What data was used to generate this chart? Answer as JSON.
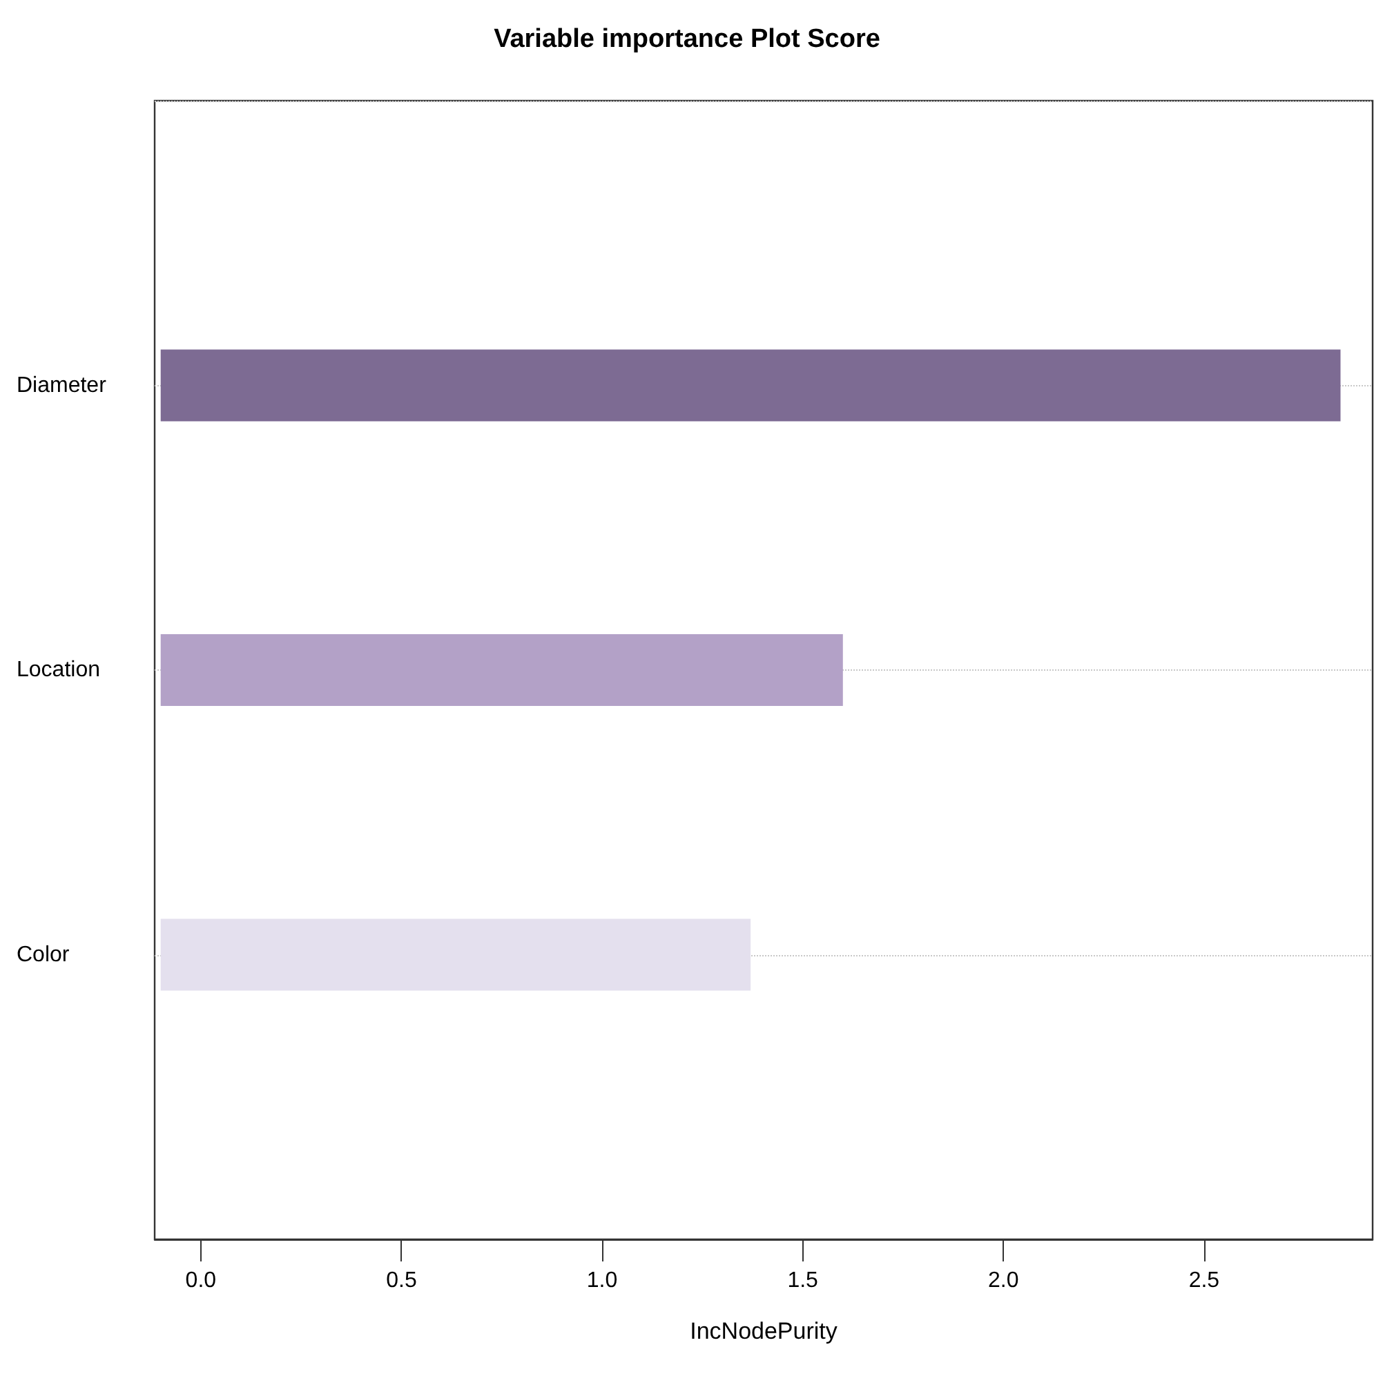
{
  "chart_data": {
    "type": "bar",
    "orientation": "horizontal",
    "title": "Variable importance Plot Score",
    "xlabel": "IncNodePurity",
    "categories": [
      "Diameter",
      "Location",
      "Color"
    ],
    "base": [
      -0.1,
      -0.1,
      -0.1
    ],
    "values": [
      2.94,
      1.7,
      1.47
    ],
    "colors": [
      "#7d6b93",
      "#b3a1c7",
      "#e4e0ee"
    ],
    "xlim": [
      -0.115,
      2.92
    ],
    "xticks": [
      {
        "value": 0,
        "label": "0.0"
      },
      {
        "value": 0.5,
        "label": "0.5"
      },
      {
        "value": 1,
        "label": "1.0"
      },
      {
        "value": 1.5,
        "label": "1.5"
      },
      {
        "value": 2,
        "label": "2.0"
      },
      {
        "value": 2.5,
        "label": "2.5"
      }
    ],
    "grid": "y"
  }
}
